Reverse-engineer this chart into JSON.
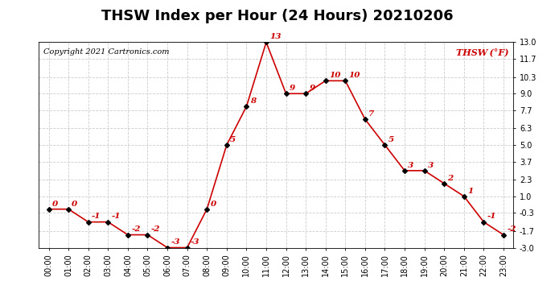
{
  "title": "THSW Index per Hour (24 Hours) 20210206",
  "copyright": "Copyright 2021 Cartronics.com",
  "legend_label": "THSW (°F)",
  "hours": [
    0,
    1,
    2,
    3,
    4,
    5,
    6,
    7,
    8,
    9,
    10,
    11,
    12,
    13,
    14,
    15,
    16,
    17,
    18,
    19,
    20,
    21,
    22,
    23
  ],
  "values": [
    0,
    0,
    -1,
    -1,
    -2,
    -2,
    -3,
    -3,
    0,
    5,
    8,
    13,
    9,
    9,
    10,
    10,
    7,
    5,
    3,
    3,
    2,
    1,
    -1,
    -2
  ],
  "hour_labels": [
    "00:00",
    "01:00",
    "02:00",
    "03:00",
    "04:00",
    "05:00",
    "06:00",
    "07:00",
    "08:00",
    "09:00",
    "10:00",
    "11:00",
    "12:00",
    "13:00",
    "14:00",
    "15:00",
    "16:00",
    "17:00",
    "18:00",
    "19:00",
    "20:00",
    "21:00",
    "22:00",
    "23:00"
  ],
  "yticks": [
    -3.0,
    -1.7,
    -0.3,
    1.0,
    2.3,
    3.7,
    5.0,
    6.3,
    7.7,
    9.0,
    10.3,
    11.7,
    13.0
  ],
  "ylim": [
    -3.0,
    13.0
  ],
  "line_color": "#cc0000",
  "marker_color": "#000000",
  "label_color": "#cc0000",
  "grid_color": "#cccccc",
  "background_color": "#ffffff",
  "title_fontsize": 13,
  "tick_fontsize": 7,
  "annotation_fontsize": 7.5,
  "copyright_fontsize": 7,
  "legend_fontsize": 8
}
